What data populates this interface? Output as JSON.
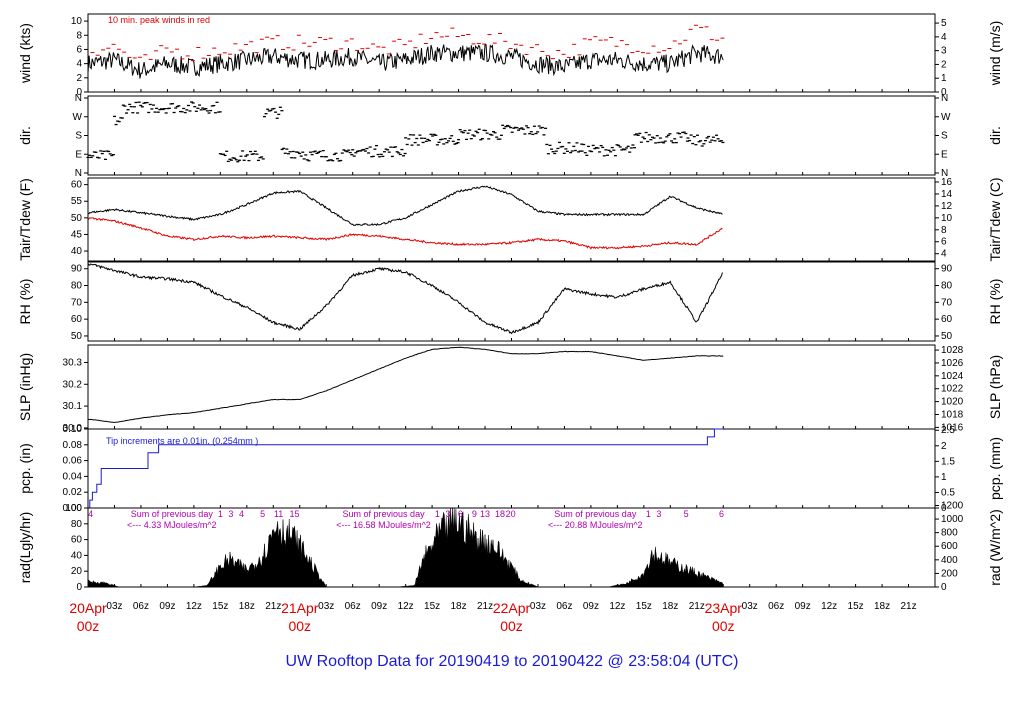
{
  "title": "UW Rooftop Data for 20190419  to  20190422 @ 23:58:04  (UTC)",
  "time_axis": {
    "start_hour": 0,
    "end_hour": 96,
    "tick_every_hours": 3,
    "hour_labels": [
      "03z",
      "06z",
      "09z",
      "12z",
      "15z",
      "18z",
      "21z"
    ],
    "day_labels": [
      {
        "hour": 0,
        "line1": "20Apr",
        "line2": "00z"
      },
      {
        "hour": 24,
        "line1": "21Apr",
        "line2": "00z"
      },
      {
        "hour": 48,
        "line1": "22Apr",
        "line2": "00z"
      },
      {
        "hour": 72,
        "line1": "23Apr",
        "line2": "00z"
      }
    ]
  },
  "panels": {
    "wind": {
      "left_label": "wind (kts)",
      "right_label": "wind (m/s)",
      "left_ticks": [
        "0",
        "2",
        "4",
        "6",
        "8",
        "10"
      ],
      "right_ticks": [
        "0",
        "1",
        "2",
        "3",
        "4",
        "5"
      ],
      "note": "10 min. peak winds in red",
      "ylim": [
        0,
        11
      ]
    },
    "dir": {
      "left_label": "dir.",
      "right_label": "dir.",
      "ticks": [
        "N",
        "E",
        "S",
        "W",
        "N"
      ]
    },
    "temp": {
      "left_label": "Tair/Tdew (F)",
      "right_label": "Tair/Tdew (C)",
      "left_ticks": [
        "40",
        "45",
        "50",
        "55",
        "60"
      ],
      "right_ticks": [
        "4",
        "6",
        "8",
        "10",
        "12",
        "14",
        "16"
      ],
      "ylim": [
        37,
        62
      ]
    },
    "rh": {
      "left_label": "RH (%)",
      "right_label": "RH (%)",
      "left_ticks": [
        "50",
        "60",
        "70",
        "80",
        "90"
      ],
      "right_ticks": [
        "50",
        "60",
        "70",
        "80",
        "90"
      ],
      "ylim": [
        47,
        94
      ]
    },
    "slp": {
      "left_label": "SLP (inHg)",
      "right_label": "SLP (hPa)",
      "left_ticks": [
        "30.0",
        "30.1",
        "30.2",
        "30.3"
      ],
      "right_ticks": [
        "1016",
        "1018",
        "1020",
        "1022",
        "1024",
        "1026",
        "1028"
      ],
      "ylim": [
        29.995,
        30.38
      ]
    },
    "pcp": {
      "left_label": "pcp. (in)",
      "right_label": "pcp. (mm)",
      "left_ticks": [
        "0.00",
        "0.02",
        "0.04",
        "0.06",
        "0.08",
        "0.10"
      ],
      "right_ticks": [
        "0",
        "0.5",
        "1",
        "1.5",
        "2",
        "2.5"
      ],
      "note": "Tip increments are 0.01in. (0.254mm )",
      "ylim": [
        0,
        0.1
      ]
    },
    "rad": {
      "left_label": "rad(Lgly/hr)",
      "right_label": "rad (W/m^2)",
      "left_ticks": [
        "0",
        "20",
        "40",
        "60",
        "80",
        "100"
      ],
      "right_ticks": [
        "0",
        "200",
        "400",
        "600",
        "800",
        "1000",
        "1200"
      ],
      "ylim": [
        0,
        100
      ],
      "summaries": [
        {
          "hour": 9.5,
          "line1": "Sum of previous day",
          "line2": "<--- 4.33 MJoules/m^2"
        },
        {
          "hour": 33.5,
          "line1": "Sum of previous day",
          "line2": "<--- 16.58 MJoules/m^2"
        },
        {
          "hour": 57.5,
          "line1": "Sum of previous day",
          "line2": "<--- 20.88 MJoules/m^2"
        }
      ],
      "top_marks": [
        {
          "hour": 0.3,
          "text": "4"
        },
        {
          "hour": 15,
          "text": "1"
        },
        {
          "hour": 16.2,
          "text": "3"
        },
        {
          "hour": 17.4,
          "text": "4"
        },
        {
          "hour": 19.8,
          "text": "5"
        },
        {
          "hour": 21.6,
          "text": "11"
        },
        {
          "hour": 23.4,
          "text": "15"
        },
        {
          "hour": 39.6,
          "text": "1"
        },
        {
          "hour": 40.8,
          "text": "3"
        },
        {
          "hour": 42.2,
          "text": "6"
        },
        {
          "hour": 43.8,
          "text": "9"
        },
        {
          "hour": 45.0,
          "text": "13"
        },
        {
          "hour": 46.7,
          "text": "18"
        },
        {
          "hour": 47.9,
          "text": "20"
        },
        {
          "hour": 63.5,
          "text": "1"
        },
        {
          "hour": 64.7,
          "text": "3"
        },
        {
          "hour": 67.8,
          "text": "5"
        },
        {
          "hour": 71.8,
          "text": "6"
        }
      ]
    }
  },
  "chart_data": {
    "type": "line",
    "x_unit": "hours since 20Apr 00z",
    "series": [
      {
        "panel": "wind",
        "x": [
          0,
          3,
          6,
          9,
          12,
          15,
          18,
          21,
          24,
          27,
          30,
          33,
          36,
          39,
          42,
          45,
          48,
          51,
          54,
          57,
          60,
          63,
          66,
          69,
          72
        ],
        "values": [
          4.0,
          4.5,
          3.0,
          4.0,
          3.5,
          4.0,
          4.5,
          5.0,
          4.5,
          4.5,
          5.0,
          4.0,
          4.5,
          5.5,
          5.5,
          5.5,
          5.0,
          4.0,
          3.5,
          4.5,
          4.5,
          4.0,
          4.0,
          5.5,
          5.0
        ]
      },
      {
        "panel": "wind",
        "name": "10 min. peak winds in red",
        "x": [
          0,
          3,
          6,
          9,
          12,
          15,
          18,
          21,
          24,
          27,
          30,
          33,
          36,
          39,
          42,
          45,
          48,
          51,
          54,
          57,
          60,
          63,
          66,
          69,
          72
        ],
        "values": [
          5.5,
          6.0,
          3.5,
          5.5,
          5.0,
          5.5,
          6.0,
          6.5,
          6.5,
          6.5,
          6.5,
          5.5,
          6.0,
          7.5,
          7.5,
          7.0,
          6.5,
          5.5,
          5.0,
          6.5,
          6.5,
          6.0,
          6.0,
          8.5,
          7.0
        ]
      },
      {
        "panel": "temp",
        "name": "Tair",
        "x": [
          0,
          3,
          6,
          9,
          12,
          15,
          18,
          21,
          24,
          27,
          30,
          33,
          36,
          39,
          42,
          45,
          48,
          51,
          54,
          57,
          60,
          63,
          66,
          69,
          72
        ],
        "values": [
          51.5,
          52.5,
          51.5,
          50.5,
          49.5,
          51,
          54,
          57.5,
          58,
          53,
          48,
          48,
          50,
          54,
          58,
          59.5,
          57,
          52,
          51,
          51,
          51,
          51,
          56.5,
          53,
          51
        ]
      },
      {
        "panel": "temp",
        "name": "Tdew",
        "x": [
          0,
          3,
          6,
          9,
          12,
          15,
          18,
          21,
          24,
          27,
          30,
          33,
          36,
          39,
          42,
          45,
          48,
          51,
          54,
          57,
          60,
          63,
          66,
          69,
          72
        ],
        "values": [
          50,
          49,
          47,
          44.5,
          43.5,
          44.5,
          44,
          44.5,
          44,
          43.5,
          45,
          44.5,
          43.5,
          42.5,
          42,
          42,
          42.5,
          43.5,
          43,
          41,
          41,
          41.5,
          42.5,
          42,
          47
        ]
      },
      {
        "panel": "rh",
        "name": "RH",
        "x": [
          0,
          3,
          6,
          9,
          12,
          15,
          18,
          21,
          24,
          27,
          30,
          33,
          36,
          39,
          42,
          45,
          48,
          51,
          54,
          57,
          60,
          63,
          66,
          69,
          72
        ],
        "values": [
          93,
          89,
          85,
          84,
          82,
          74,
          67,
          58,
          54,
          68,
          86,
          90,
          88,
          80,
          70,
          58,
          52,
          58,
          78,
          75,
          73,
          78,
          82,
          58,
          88
        ]
      },
      {
        "panel": "slp",
        "name": "SLP",
        "x": [
          0,
          3,
          6,
          9,
          12,
          15,
          18,
          21,
          24,
          27,
          30,
          33,
          36,
          39,
          42,
          45,
          48,
          51,
          54,
          57,
          60,
          63,
          66,
          69,
          72
        ],
        "values": [
          30.04,
          30.025,
          30.045,
          30.06,
          30.07,
          30.09,
          30.11,
          30.13,
          30.13,
          30.17,
          30.22,
          30.27,
          30.32,
          30.36,
          30.37,
          30.36,
          30.34,
          30.34,
          30.35,
          30.35,
          30.33,
          30.31,
          30.32,
          30.33,
          30.33
        ]
      },
      {
        "panel": "pcp",
        "name": "pcp",
        "x": [
          0,
          0.2,
          0.5,
          1,
          1.5,
          3,
          6,
          6.8,
          7.5,
          8,
          70,
          70.2,
          71,
          72
        ],
        "values": [
          0,
          0.01,
          0.02,
          0.03,
          0.05,
          0.05,
          0.05,
          0.07,
          0.07,
          0.08,
          0.08,
          0.09,
          0.1,
          0.1
        ]
      },
      {
        "panel": "rad",
        "name": "rad",
        "x": [
          0,
          2,
          3.5,
          12,
          13.5,
          15,
          16,
          18,
          19,
          20,
          21.5,
          22,
          23,
          24,
          26,
          27,
          35,
          37,
          38,
          40,
          42,
          44,
          46,
          48,
          49,
          51,
          59,
          61,
          63,
          64,
          66,
          68,
          70,
          72
        ],
        "values": [
          8,
          6,
          0,
          0,
          2,
          30,
          40,
          25,
          35,
          50,
          95,
          80,
          75,
          60,
          20,
          0,
          0,
          2,
          40,
          80,
          95,
          70,
          60,
          30,
          10,
          0,
          0,
          5,
          20,
          50,
          35,
          25,
          15,
          5
        ]
      }
    ]
  }
}
